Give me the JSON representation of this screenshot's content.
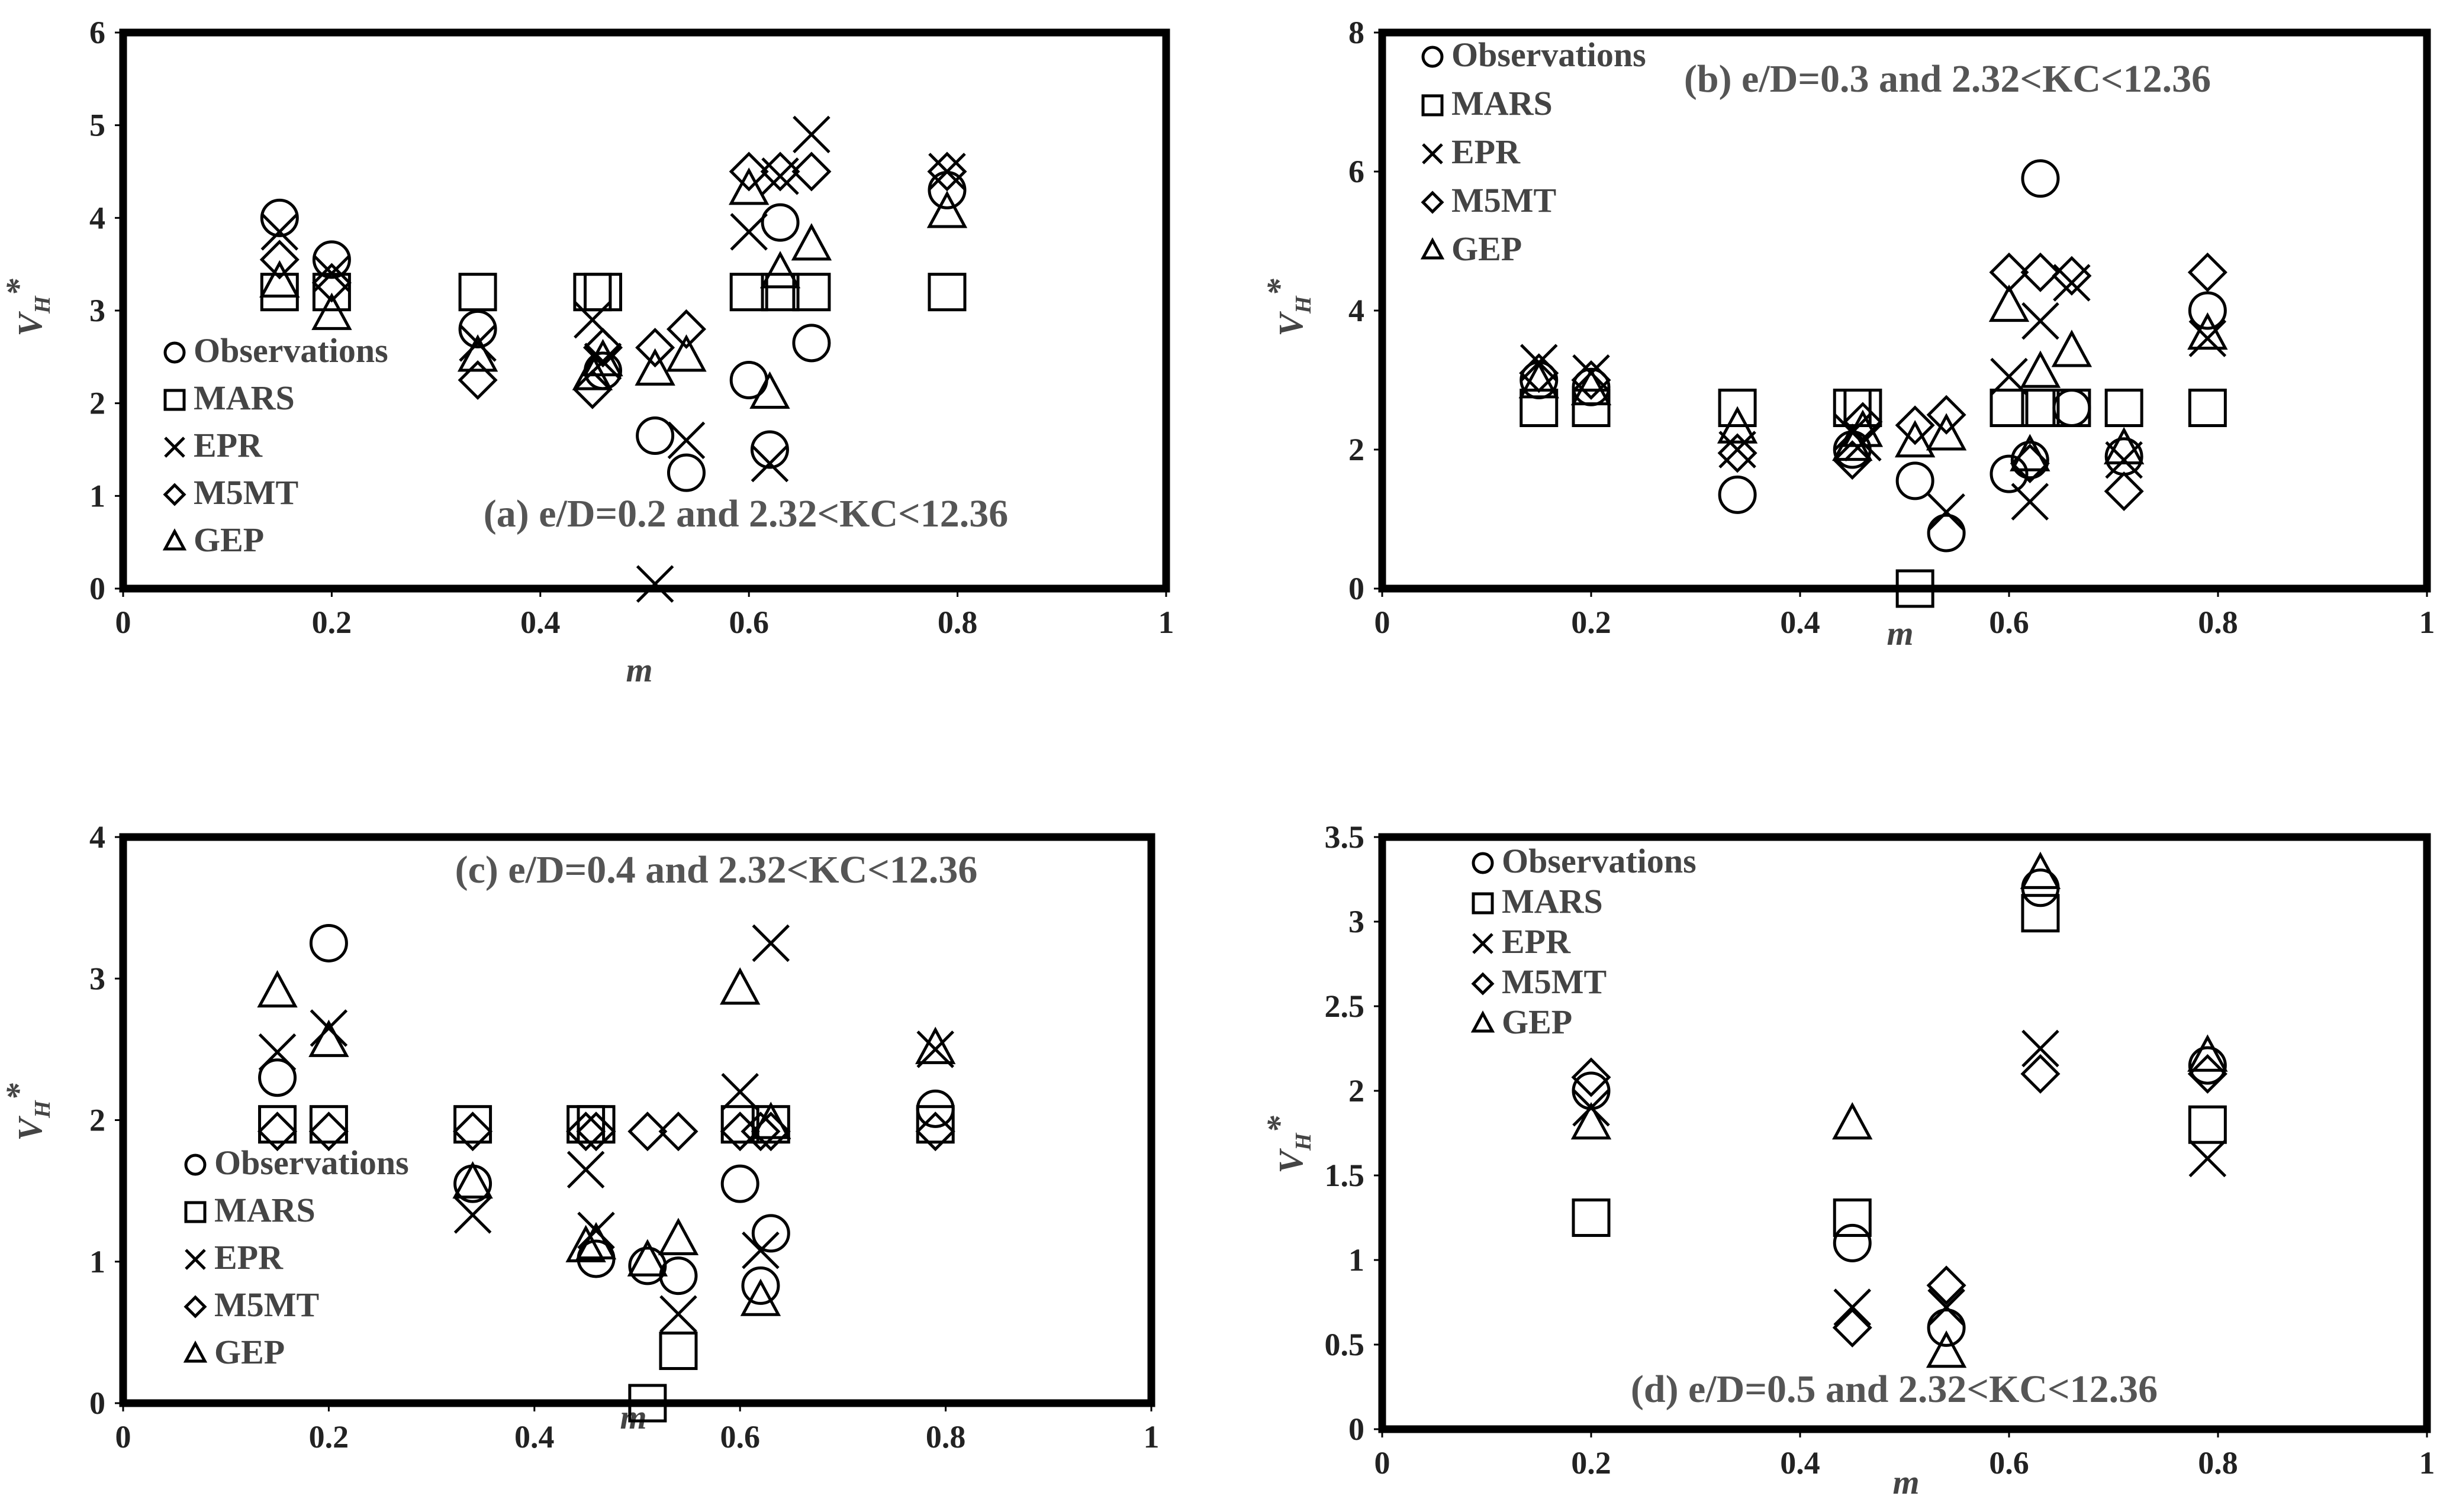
{
  "chart_data": [
    {
      "type": "scatter",
      "title": "(a) e/D=0.2 and 2.32<KC<12.36",
      "xlabel": "m",
      "ylabel": "V",
      "ylabel_sub": "H",
      "ylabel_sup": "*",
      "xlim": [
        0,
        1
      ],
      "ylim": [
        0,
        6
      ],
      "xticks": [
        "0",
        "0.2",
        "0.4",
        "0.6",
        "0.8",
        "1"
      ],
      "yticks": [
        "0",
        "1",
        "2",
        "3",
        "4",
        "5",
        "6"
      ],
      "legend_position": "middle-left",
      "series": [
        {
          "name": "Observations",
          "marker": "circle",
          "points": [
            [
              0.15,
              4.0
            ],
            [
              0.2,
              3.55
            ],
            [
              0.34,
              2.8
            ],
            [
              0.46,
              2.35
            ],
            [
              0.51,
              1.65
            ],
            [
              0.54,
              1.25
            ],
            [
              0.6,
              2.25
            ],
            [
              0.63,
              3.95
            ],
            [
              0.66,
              2.65
            ],
            [
              0.62,
              1.5
            ],
            [
              0.79,
              4.3
            ]
          ]
        },
        {
          "name": "MARS",
          "marker": "square",
          "points": [
            [
              0.15,
              3.2
            ],
            [
              0.2,
              3.2
            ],
            [
              0.34,
              3.2
            ],
            [
              0.45,
              3.2
            ],
            [
              0.46,
              3.2
            ],
            [
              0.6,
              3.2
            ],
            [
              0.63,
              3.2
            ],
            [
              0.66,
              3.2
            ],
            [
              0.79,
              3.2
            ]
          ]
        },
        {
          "name": "EPR",
          "marker": "x",
          "points": [
            [
              0.15,
              3.85
            ],
            [
              0.2,
              3.4
            ],
            [
              0.34,
              2.65
            ],
            [
              0.45,
              2.9
            ],
            [
              0.46,
              2.45
            ],
            [
              0.51,
              0.05
            ],
            [
              0.54,
              1.6
            ],
            [
              0.6,
              3.85
            ],
            [
              0.62,
              1.35
            ],
            [
              0.63,
              4.45
            ],
            [
              0.66,
              4.9
            ],
            [
              0.79,
              4.5
            ]
          ]
        },
        {
          "name": "M5MT",
          "marker": "diamond",
          "points": [
            [
              0.15,
              3.55
            ],
            [
              0.2,
              3.3
            ],
            [
              0.34,
              2.25
            ],
            [
              0.45,
              2.15
            ],
            [
              0.46,
              2.6
            ],
            [
              0.51,
              2.6
            ],
            [
              0.54,
              2.8
            ],
            [
              0.6,
              4.5
            ],
            [
              0.63,
              4.5
            ],
            [
              0.66,
              4.5
            ],
            [
              0.79,
              4.5
            ]
          ]
        },
        {
          "name": "GEP",
          "marker": "triangle",
          "points": [
            [
              0.15,
              3.3
            ],
            [
              0.2,
              2.95
            ],
            [
              0.34,
              2.5
            ],
            [
              0.45,
              2.3
            ],
            [
              0.46,
              2.45
            ],
            [
              0.51,
              2.35
            ],
            [
              0.54,
              2.5
            ],
            [
              0.6,
              4.3
            ],
            [
              0.62,
              2.1
            ],
            [
              0.63,
              3.4
            ],
            [
              0.66,
              3.7
            ],
            [
              0.79,
              4.05
            ]
          ]
        }
      ]
    },
    {
      "type": "scatter",
      "title": "(b) e/D=0.3 and 2.32<KC<12.36",
      "xlabel": "m",
      "ylabel": "V",
      "ylabel_sub": "H",
      "ylabel_sup": "*",
      "xlim": [
        0,
        1
      ],
      "ylim": [
        0,
        8
      ],
      "xticks": [
        "0",
        "0.2",
        "0.4",
        "0.6",
        "0.8",
        "1"
      ],
      "yticks": [
        "0",
        "2",
        "4",
        "6",
        "8"
      ],
      "legend_position": "top-left",
      "series": [
        {
          "name": "Observations",
          "marker": "circle",
          "points": [
            [
              0.15,
              3.0
            ],
            [
              0.2,
              2.9
            ],
            [
              0.34,
              1.35
            ],
            [
              0.45,
              2.0
            ],
            [
              0.51,
              1.55
            ],
            [
              0.54,
              0.8
            ],
            [
              0.6,
              1.65
            ],
            [
              0.62,
              1.85
            ],
            [
              0.63,
              5.9
            ],
            [
              0.66,
              2.6
            ],
            [
              0.71,
              1.9
            ],
            [
              0.79,
              4.0
            ]
          ]
        },
        {
          "name": "MARS",
          "marker": "square",
          "points": [
            [
              0.15,
              2.6
            ],
            [
              0.2,
              2.6
            ],
            [
              0.34,
              2.6
            ],
            [
              0.45,
              2.6
            ],
            [
              0.46,
              2.6
            ],
            [
              0.51,
              0.0
            ],
            [
              0.6,
              2.6
            ],
            [
              0.63,
              2.6
            ],
            [
              0.66,
              2.6
            ],
            [
              0.71,
              2.6
            ],
            [
              0.79,
              2.6
            ]
          ]
        },
        {
          "name": "EPR",
          "marker": "x",
          "points": [
            [
              0.15,
              3.25
            ],
            [
              0.2,
              3.1
            ],
            [
              0.34,
              2.0
            ],
            [
              0.45,
              2.25
            ],
            [
              0.46,
              2.1
            ],
            [
              0.54,
              1.1
            ],
            [
              0.6,
              3.05
            ],
            [
              0.62,
              1.25
            ],
            [
              0.63,
              3.85
            ],
            [
              0.66,
              4.4
            ],
            [
              0.71,
              1.85
            ],
            [
              0.79,
              3.6
            ]
          ]
        },
        {
          "name": "M5MT",
          "marker": "diamond",
          "points": [
            [
              0.15,
              3.1
            ],
            [
              0.2,
              3.0
            ],
            [
              0.34,
              1.95
            ],
            [
              0.45,
              1.85
            ],
            [
              0.46,
              2.4
            ],
            [
              0.51,
              2.35
            ],
            [
              0.54,
              2.5
            ],
            [
              0.6,
              4.55
            ],
            [
              0.62,
              1.8
            ],
            [
              0.63,
              4.55
            ],
            [
              0.66,
              4.5
            ],
            [
              0.71,
              1.4
            ],
            [
              0.79,
              4.55
            ]
          ]
        },
        {
          "name": "GEP",
          "marker": "triangle",
          "points": [
            [
              0.15,
              2.95
            ],
            [
              0.2,
              2.85
            ],
            [
              0.34,
              2.3
            ],
            [
              0.45,
              2.05
            ],
            [
              0.46,
              2.25
            ],
            [
              0.51,
              2.1
            ],
            [
              0.54,
              2.2
            ],
            [
              0.6,
              4.05
            ],
            [
              0.62,
              1.9
            ],
            [
              0.63,
              3.1
            ],
            [
              0.66,
              3.4
            ],
            [
              0.71,
              2.0
            ],
            [
              0.79,
              3.65
            ]
          ]
        }
      ]
    },
    {
      "type": "scatter",
      "title": "(c) e/D=0.4 and 2.32<KC<12.36",
      "xlabel": "m",
      "ylabel": "V",
      "ylabel_sub": "H",
      "ylabel_sup": "*",
      "xlim": [
        0,
        1
      ],
      "ylim": [
        0,
        4
      ],
      "xticks": [
        "0",
        "0.2",
        "0.4",
        "0.6",
        "0.8",
        "1"
      ],
      "yticks": [
        "0",
        "1",
        "2",
        "3",
        "4"
      ],
      "legend_position": "bottom-left",
      "series": [
        {
          "name": "Observations",
          "marker": "circle",
          "points": [
            [
              0.15,
              2.3
            ],
            [
              0.2,
              3.25
            ],
            [
              0.34,
              1.55
            ],
            [
              0.46,
              1.02
            ],
            [
              0.51,
              0.97
            ],
            [
              0.54,
              0.9
            ],
            [
              0.6,
              1.55
            ],
            [
              0.62,
              0.83
            ],
            [
              0.63,
              1.2
            ],
            [
              0.79,
              2.08
            ]
          ]
        },
        {
          "name": "MARS",
          "marker": "square",
          "points": [
            [
              0.15,
              1.97
            ],
            [
              0.2,
              1.97
            ],
            [
              0.34,
              1.97
            ],
            [
              0.45,
              1.97
            ],
            [
              0.46,
              1.97
            ],
            [
              0.51,
              0.0
            ],
            [
              0.54,
              0.37
            ],
            [
              0.6,
              1.97
            ],
            [
              0.63,
              1.97
            ],
            [
              0.79,
              1.97
            ]
          ]
        },
        {
          "name": "EPR",
          "marker": "x",
          "points": [
            [
              0.15,
              2.48
            ],
            [
              0.2,
              2.65
            ],
            [
              0.34,
              1.33
            ],
            [
              0.45,
              1.65
            ],
            [
              0.46,
              1.22
            ],
            [
              0.54,
              0.63
            ],
            [
              0.6,
              2.2
            ],
            [
              0.62,
              1.08
            ],
            [
              0.63,
              3.25
            ],
            [
              0.79,
              2.5
            ]
          ]
        },
        {
          "name": "M5MT",
          "marker": "diamond",
          "points": [
            [
              0.15,
              1.92
            ],
            [
              0.2,
              1.92
            ],
            [
              0.34,
              1.92
            ],
            [
              0.45,
              1.92
            ],
            [
              0.46,
              1.92
            ],
            [
              0.51,
              1.92
            ],
            [
              0.54,
              1.92
            ],
            [
              0.6,
              1.92
            ],
            [
              0.62,
              1.92
            ],
            [
              0.63,
              1.92
            ],
            [
              0.79,
              1.92
            ]
          ]
        },
        {
          "name": "GEP",
          "marker": "triangle",
          "points": [
            [
              0.15,
              2.9
            ],
            [
              0.2,
              2.55
            ],
            [
              0.34,
              1.55
            ],
            [
              0.45,
              1.1
            ],
            [
              0.46,
              1.12
            ],
            [
              0.51,
              1.0
            ],
            [
              0.54,
              1.15
            ],
            [
              0.6,
              2.92
            ],
            [
              0.62,
              0.72
            ],
            [
              0.63,
              1.97
            ],
            [
              0.79,
              2.5
            ]
          ]
        }
      ]
    },
    {
      "type": "scatter",
      "title": "(d) e/D=0.5 and 2.32<KC<12.36",
      "xlabel": "m",
      "ylabel": "V",
      "ylabel_sub": "H",
      "ylabel_sup": "*",
      "xlim": [
        0,
        1
      ],
      "ylim": [
        0,
        3.5
      ],
      "xticks": [
        "0",
        "0.2",
        "0.4",
        "0.6",
        "0.8",
        "1"
      ],
      "yticks": [
        "0",
        "0.5",
        "1",
        "1.5",
        "2",
        "2.5",
        "3",
        "3.5"
      ],
      "legend_position": "top-left",
      "series": [
        {
          "name": "Observations",
          "marker": "circle",
          "points": [
            [
              0.2,
              2.0
            ],
            [
              0.45,
              1.1
            ],
            [
              0.54,
              0.6
            ],
            [
              0.63,
              3.2
            ],
            [
              0.79,
              2.15
            ]
          ]
        },
        {
          "name": "MARS",
          "marker": "square",
          "points": [
            [
              0.2,
              1.25
            ],
            [
              0.45,
              1.25
            ],
            [
              0.63,
              3.05
            ],
            [
              0.79,
              1.8
            ]
          ]
        },
        {
          "name": "EPR",
          "marker": "x",
          "points": [
            [
              0.2,
              1.9
            ],
            [
              0.45,
              0.72
            ],
            [
              0.54,
              0.72
            ],
            [
              0.63,
              2.25
            ],
            [
              0.79,
              1.6
            ]
          ]
        },
        {
          "name": "M5MT",
          "marker": "diamond",
          "points": [
            [
              0.2,
              2.08
            ],
            [
              0.45,
              0.6
            ],
            [
              0.54,
              0.85
            ],
            [
              0.63,
              2.1
            ],
            [
              0.79,
              2.1
            ]
          ]
        },
        {
          "name": "GEP",
          "marker": "triangle",
          "points": [
            [
              0.2,
              1.8
            ],
            [
              0.45,
              1.8
            ],
            [
              0.54,
              0.45
            ],
            [
              0.63,
              3.28
            ],
            [
              0.79,
              2.2
            ]
          ]
        }
      ]
    }
  ]
}
